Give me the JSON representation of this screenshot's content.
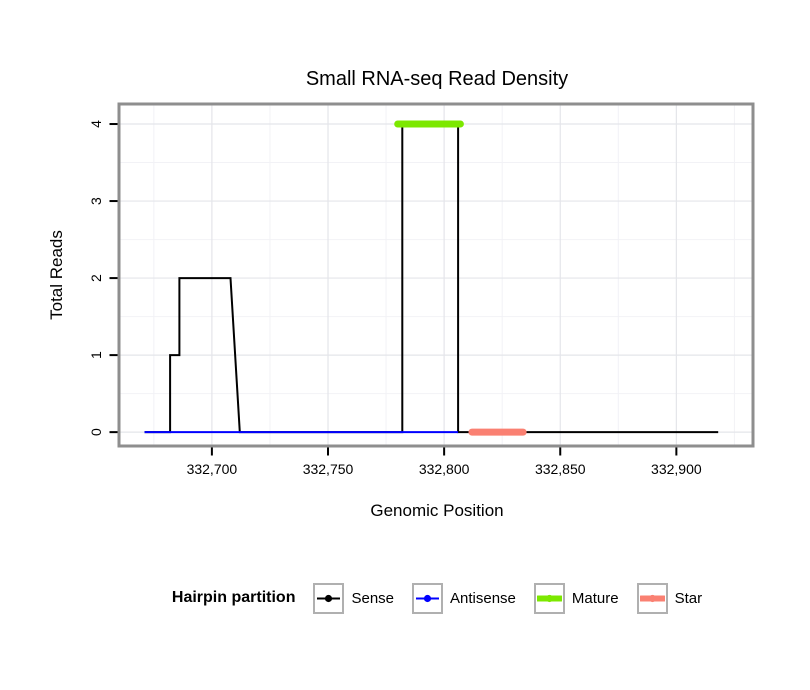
{
  "chart_data": {
    "type": "line",
    "title": "Small RNA-seq Read Density",
    "xlabel": "Genomic Position",
    "ylabel": "Total Reads",
    "xlim": [
      332660,
      332933
    ],
    "ylim": [
      -0.18,
      4.26
    ],
    "x_ticks": [
      {
        "value": 332700,
        "label": "332,700"
      },
      {
        "value": 332750,
        "label": "332,750"
      },
      {
        "value": 332800,
        "label": "332,800"
      },
      {
        "value": 332850,
        "label": "332,850"
      },
      {
        "value": 332900,
        "label": "332,900"
      }
    ],
    "y_ticks": [
      {
        "value": 0,
        "label": "0"
      },
      {
        "value": 1,
        "label": "1"
      },
      {
        "value": 2,
        "label": "2"
      },
      {
        "value": 3,
        "label": "3"
      },
      {
        "value": 4,
        "label": "4"
      }
    ],
    "legend_title": "Hairpin partition",
    "legend_position": "bottom",
    "grid": true,
    "series": [
      {
        "name": "Sense",
        "color": "#000000",
        "line_width": 2,
        "cap": "butt",
        "points": [
          [
            332671,
            0
          ],
          [
            332682,
            0
          ],
          [
            332682,
            1
          ],
          [
            332686,
            1
          ],
          [
            332686,
            2
          ],
          [
            332708,
            2
          ],
          [
            332712,
            0
          ],
          [
            332782,
            0
          ],
          [
            332782,
            4
          ],
          [
            332806,
            4
          ],
          [
            332806,
            0
          ],
          [
            332918,
            0
          ]
        ]
      },
      {
        "name": "Antisense",
        "color": "#0000ff",
        "line_width": 2,
        "cap": "butt",
        "points": [
          [
            332671,
            0
          ],
          [
            332806,
            0
          ]
        ]
      },
      {
        "name": "Mature",
        "color": "#7ce800",
        "line_width": 7,
        "cap": "round",
        "points": [
          [
            332780,
            4
          ],
          [
            332807,
            4
          ]
        ]
      },
      {
        "name": "Star",
        "color": "#fa8072",
        "line_width": 7,
        "cap": "round",
        "points": [
          [
            332812,
            0
          ],
          [
            332834,
            0
          ]
        ]
      }
    ],
    "colors": {
      "grid_major": "#e4e5ea",
      "grid_minor": "#f2f2f6",
      "panel_border": "#8e8e8e",
      "axis_tick": "#000000",
      "axis_text": "#000000",
      "background": "#ffffff"
    }
  }
}
